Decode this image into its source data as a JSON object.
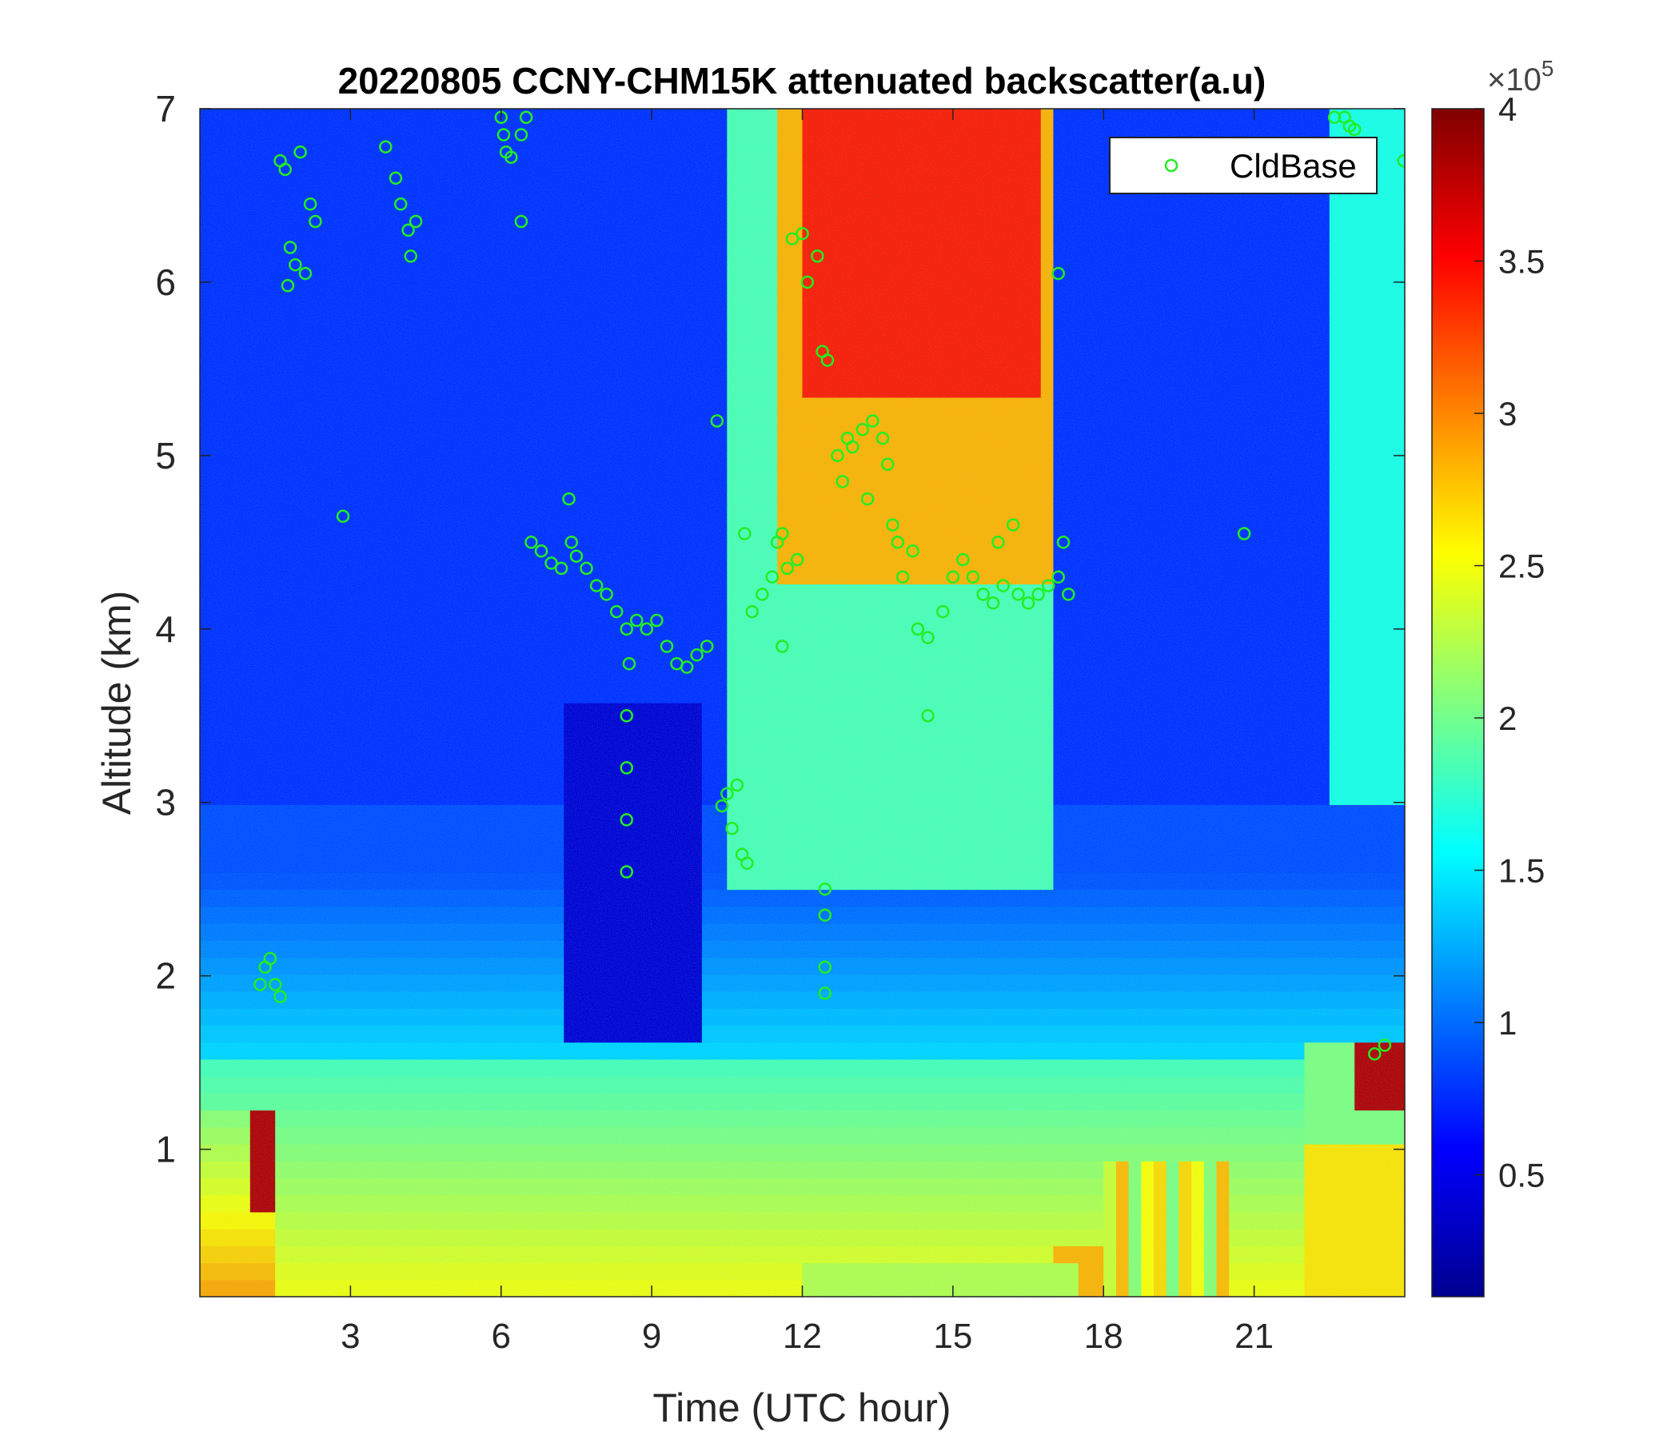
{
  "chart_data": {
    "type": "heatmap",
    "title": "20220805 CCNY-CHM15K attenuated backscatter(a.u)",
    "xlabel": "Time (UTC hour)",
    "ylabel": "Altitude (km)",
    "xlim": [
      0,
      24
    ],
    "ylim": [
      0.15,
      7
    ],
    "x_ticks": [
      3,
      6,
      9,
      12,
      15,
      18,
      21
    ],
    "y_ticks": [
      1,
      2,
      3,
      4,
      5,
      6,
      7
    ],
    "colorbar": {
      "colormap": "jet",
      "range": [
        0.1,
        4
      ],
      "ticks": [
        0.5,
        1,
        1.5,
        2,
        2.5,
        3,
        3.5,
        4
      ],
      "tick_labels": [
        "0.5",
        "1",
        "1.5",
        "2",
        "2.5",
        "3",
        "3.5",
        "4"
      ],
      "exponent_base": "×10",
      "exponent_power": "5"
    },
    "legend": {
      "position": "top-right",
      "entries": [
        "CldBase"
      ]
    },
    "colors": {
      "marker": "#22ee22",
      "low": "#00008f",
      "high": "#800000"
    },
    "series": [
      {
        "name": "CldBase",
        "marker": "circle",
        "points": [
          [
            1.6,
            6.7
          ],
          [
            1.7,
            6.65
          ],
          [
            2.0,
            6.75
          ],
          [
            1.8,
            6.2
          ],
          [
            1.9,
            6.1
          ],
          [
            1.75,
            5.98
          ],
          [
            2.1,
            6.05
          ],
          [
            2.2,
            6.45
          ],
          [
            2.3,
            6.35
          ],
          [
            2.85,
            4.65
          ],
          [
            3.7,
            6.78
          ],
          [
            3.9,
            6.6
          ],
          [
            4.0,
            6.45
          ],
          [
            4.15,
            6.3
          ],
          [
            4.3,
            6.35
          ],
          [
            4.2,
            6.15
          ],
          [
            6.0,
            6.95
          ],
          [
            6.05,
            6.85
          ],
          [
            6.1,
            6.75
          ],
          [
            6.2,
            6.72
          ],
          [
            6.4,
            6.85
          ],
          [
            6.5,
            6.95
          ],
          [
            6.4,
            6.35
          ],
          [
            6.6,
            4.5
          ],
          [
            6.8,
            4.45
          ],
          [
            7.0,
            4.38
          ],
          [
            7.2,
            4.35
          ],
          [
            7.4,
            4.5
          ],
          [
            7.35,
            4.75
          ],
          [
            7.5,
            4.42
          ],
          [
            7.7,
            4.35
          ],
          [
            7.9,
            4.25
          ],
          [
            8.1,
            4.2
          ],
          [
            8.3,
            4.1
          ],
          [
            8.5,
            4.0
          ],
          [
            8.5,
            3.5
          ],
          [
            8.5,
            3.2
          ],
          [
            8.5,
            2.9
          ],
          [
            8.5,
            2.6
          ],
          [
            8.55,
            3.8
          ],
          [
            8.7,
            4.05
          ],
          [
            8.9,
            4.0
          ],
          [
            9.1,
            4.05
          ],
          [
            9.3,
            3.9
          ],
          [
            9.5,
            3.8
          ],
          [
            9.7,
            3.78
          ],
          [
            9.9,
            3.85
          ],
          [
            10.1,
            3.9
          ],
          [
            10.3,
            5.2
          ],
          [
            10.4,
            2.98
          ],
          [
            10.5,
            3.05
          ],
          [
            10.7,
            3.1
          ],
          [
            10.6,
            2.85
          ],
          [
            10.8,
            2.7
          ],
          [
            10.9,
            2.65
          ],
          [
            10.85,
            4.55
          ],
          [
            11.0,
            4.1
          ],
          [
            11.2,
            4.2
          ],
          [
            11.4,
            4.3
          ],
          [
            11.5,
            4.5
          ],
          [
            11.6,
            4.55
          ],
          [
            11.7,
            4.35
          ],
          [
            11.9,
            4.4
          ],
          [
            11.6,
            3.9
          ],
          [
            11.8,
            6.25
          ],
          [
            12.0,
            6.28
          ],
          [
            12.1,
            6.0
          ],
          [
            12.3,
            6.15
          ],
          [
            12.4,
            5.6
          ],
          [
            12.5,
            5.55
          ],
          [
            12.7,
            5.0
          ],
          [
            12.8,
            4.85
          ],
          [
            12.9,
            5.1
          ],
          [
            13.0,
            5.05
          ],
          [
            13.2,
            5.15
          ],
          [
            13.3,
            4.75
          ],
          [
            13.4,
            5.2
          ],
          [
            13.6,
            5.1
          ],
          [
            13.7,
            4.95
          ],
          [
            13.8,
            4.6
          ],
          [
            13.9,
            4.5
          ],
          [
            14.0,
            4.3
          ],
          [
            14.2,
            4.45
          ],
          [
            14.3,
            4.0
          ],
          [
            14.5,
            3.95
          ],
          [
            14.5,
            3.5
          ],
          [
            14.8,
            4.1
          ],
          [
            15.0,
            4.3
          ],
          [
            15.2,
            4.4
          ],
          [
            15.4,
            4.3
          ],
          [
            15.6,
            4.2
          ],
          [
            15.8,
            4.15
          ],
          [
            15.9,
            4.5
          ],
          [
            16.0,
            4.25
          ],
          [
            16.2,
            4.6
          ],
          [
            16.3,
            4.2
          ],
          [
            16.5,
            4.15
          ],
          [
            16.7,
            4.2
          ],
          [
            16.9,
            4.25
          ],
          [
            17.1,
            4.3
          ],
          [
            17.2,
            4.5
          ],
          [
            17.3,
            4.2
          ],
          [
            17.1,
            6.05
          ],
          [
            20.8,
            4.55
          ],
          [
            22.6,
            6.95
          ],
          [
            22.8,
            6.95
          ],
          [
            22.9,
            6.9
          ],
          [
            23.0,
            6.88
          ],
          [
            23.4,
            1.55
          ],
          [
            23.6,
            1.6
          ],
          [
            23.98,
            6.7
          ],
          [
            1.2,
            1.95
          ],
          [
            1.3,
            2.05
          ],
          [
            1.5,
            1.95
          ],
          [
            1.6,
            1.88
          ],
          [
            1.4,
            2.1
          ],
          [
            12.45,
            2.5
          ],
          [
            12.45,
            2.35
          ],
          [
            12.45,
            2.05
          ],
          [
            12.45,
            1.9
          ]
        ]
      }
    ]
  }
}
